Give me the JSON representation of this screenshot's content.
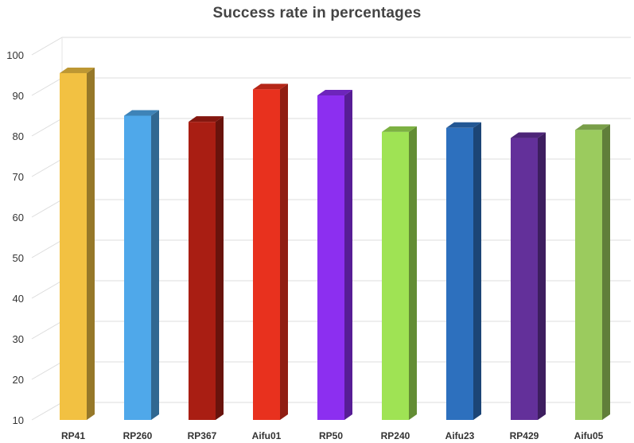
{
  "chart_data": {
    "type": "bar",
    "title": "Success rate in percentages",
    "xlabel": "",
    "ylabel": "",
    "categories": [
      "RP41",
      "RP260",
      "RP367",
      "Aifu01",
      "RP50",
      "RP240",
      "Aifu23",
      "RP429",
      "Aifu05"
    ],
    "values": [
      95.5,
      85,
      83.5,
      91.5,
      90,
      81,
      82,
      79.5,
      81.5
    ],
    "colors": [
      "#F2C142",
      "#4FA8EA",
      "#A91E13",
      "#E8311E",
      "#8C2FF0",
      "#9FE354",
      "#2D70BE",
      "#63309A",
      "#9BCB5E"
    ],
    "ylim": [
      10,
      100
    ],
    "yticks": [
      10,
      20,
      30,
      40,
      50,
      60,
      70,
      80,
      90,
      100
    ],
    "grid": true,
    "legend": "none",
    "style": "3d-column"
  }
}
